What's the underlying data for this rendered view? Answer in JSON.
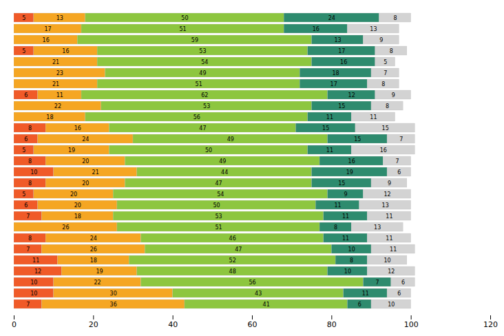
{
  "chart_data": {
    "type": "bar",
    "orientation": "horizontal",
    "stacked": true,
    "data_labels": true,
    "tick_labels": "x",
    "categories": [
      null,
      null,
      null,
      null,
      null,
      null,
      null,
      null,
      null,
      null,
      null,
      null,
      null,
      null,
      null,
      null,
      null,
      null,
      null,
      null,
      null,
      null,
      null,
      null,
      null,
      null,
      null
    ],
    "series": [
      {
        "color": "#f05a28",
        "values": [
          5,
          0,
          0,
          5,
          0,
          0,
          0,
          6,
          0,
          0,
          8,
          6,
          5,
          8,
          10,
          8,
          5,
          6,
          7,
          0,
          8,
          7,
          11,
          12,
          10,
          10,
          7
        ]
      },
      {
        "color": "#f5a623",
        "values": [
          13,
          17,
          16,
          16,
          21,
          23,
          21,
          11,
          22,
          18,
          16,
          24,
          19,
          20,
          21,
          20,
          20,
          20,
          18,
          26,
          24,
          26,
          18,
          19,
          22,
          30,
          36
        ]
      },
      {
        "color": "#8dc63f",
        "values": [
          50,
          51,
          59,
          53,
          54,
          49,
          51,
          62,
          53,
          56,
          47,
          49,
          50,
          49,
          44,
          47,
          54,
          50,
          53,
          51,
          46,
          47,
          52,
          48,
          56,
          43,
          41
        ]
      },
      {
        "color": "#2e8b6e",
        "values": [
          24,
          16,
          13,
          17,
          16,
          18,
          17,
          12,
          15,
          11,
          15,
          15,
          11,
          16,
          19,
          15,
          9,
          11,
          11,
          8,
          11,
          10,
          8,
          10,
          7,
          11,
          6
        ]
      },
      {
        "color": "#d3d3d3",
        "values": [
          8,
          13,
          9,
          8,
          5,
          7,
          8,
          9,
          8,
          11,
          15,
          7,
          16,
          7,
          6,
          9,
          12,
          13,
          11,
          13,
          11,
          11,
          10,
          12,
          6,
          6,
          10
        ]
      }
    ],
    "xlim": [
      0,
      120
    ],
    "xticks": [
      0,
      20,
      40,
      60,
      80,
      100,
      120
    ],
    "grid": false
  }
}
